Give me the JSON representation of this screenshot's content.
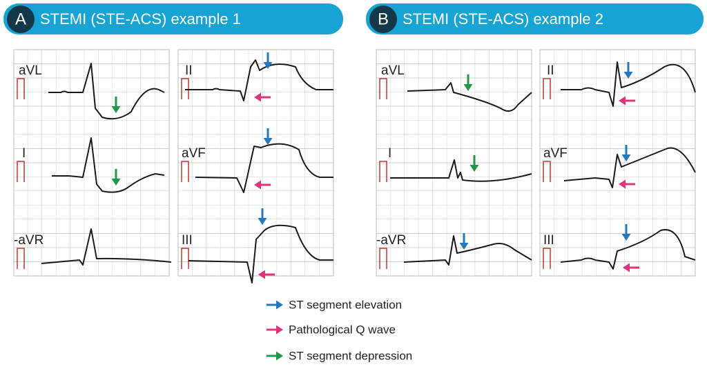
{
  "panels": [
    {
      "letter": "A",
      "title": "STEMI (STE-ACS) example 1",
      "leads": [
        "aVL",
        "I",
        "-aVR",
        "II",
        "aVF",
        "III"
      ]
    },
    {
      "letter": "B",
      "title": "STEMI (STE-ACS) example 2",
      "leads": [
        "aVL",
        "I",
        "-aVR",
        "II",
        "aVF",
        "III"
      ]
    }
  ],
  "legend": [
    {
      "label": "ST segment elevation"
    },
    {
      "label": "Pathological Q wave"
    },
    {
      "label": "ST segment depression"
    }
  ]
}
